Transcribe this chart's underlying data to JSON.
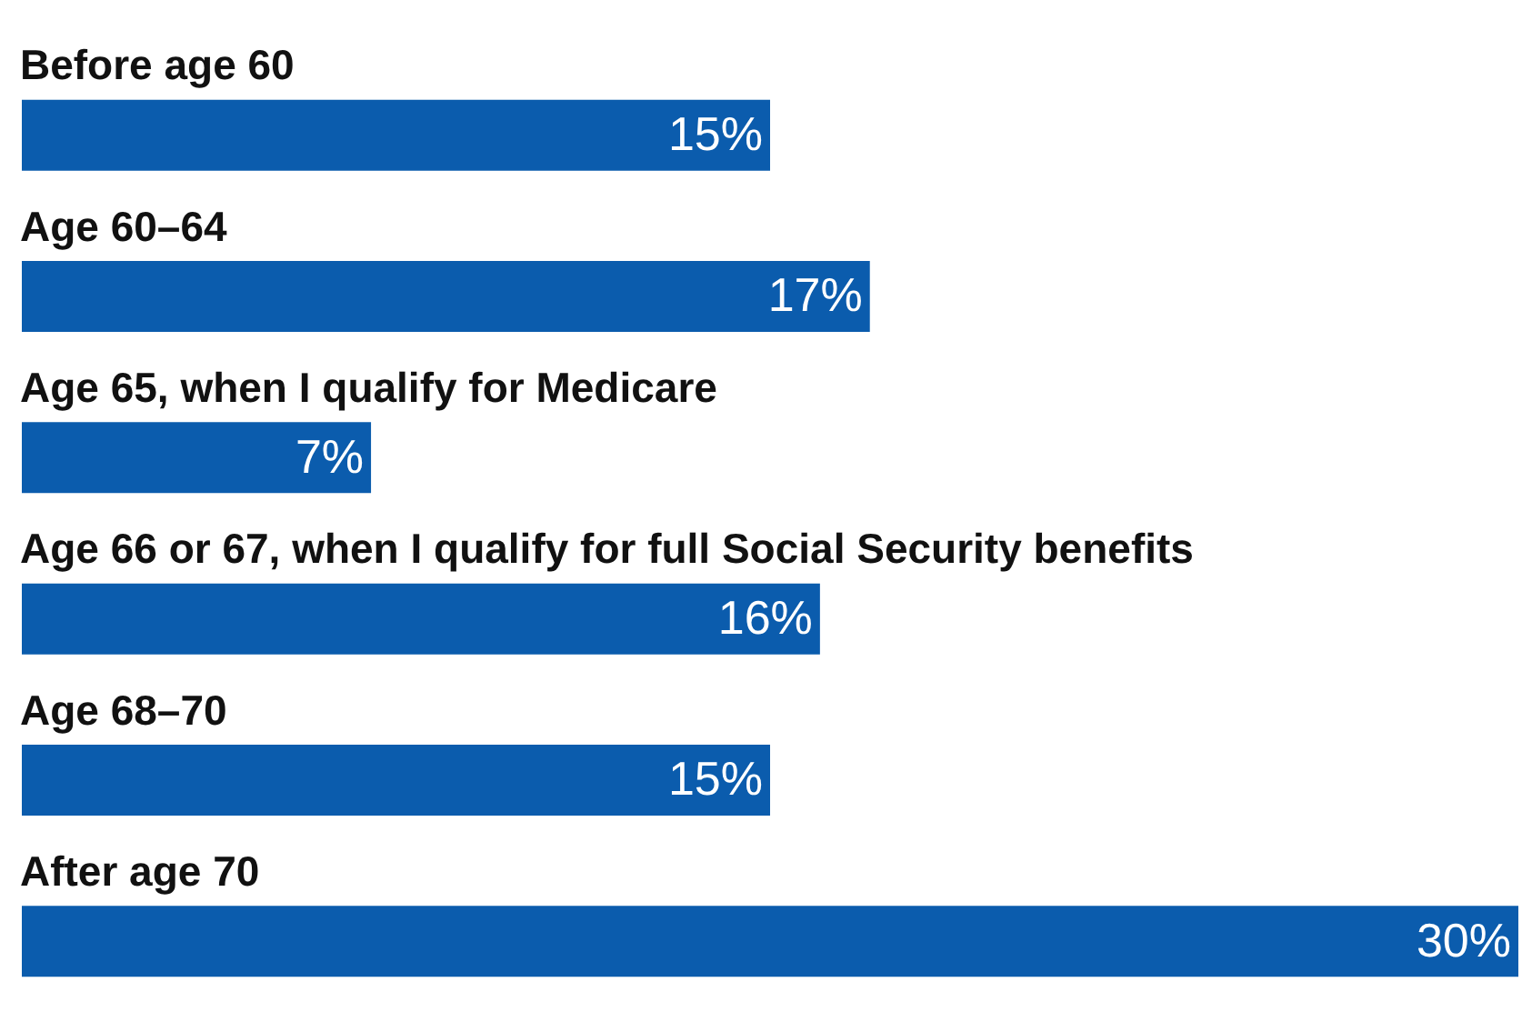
{
  "chart_data": {
    "type": "bar",
    "orientation": "horizontal",
    "categories": [
      "Before age 60",
      "Age 60–64",
      "Age 65, when I qualify for Medicare",
      "Age 66 or 67, when I qualify for full Social Security benefits",
      "Age 68–70",
      "After age 70"
    ],
    "values": [
      15,
      17,
      7,
      16,
      15,
      30
    ],
    "value_labels": [
      "15%",
      "17%",
      "7%",
      "16%",
      "15%",
      "30%"
    ],
    "color": "#0b5cad",
    "legend": false
  }
}
